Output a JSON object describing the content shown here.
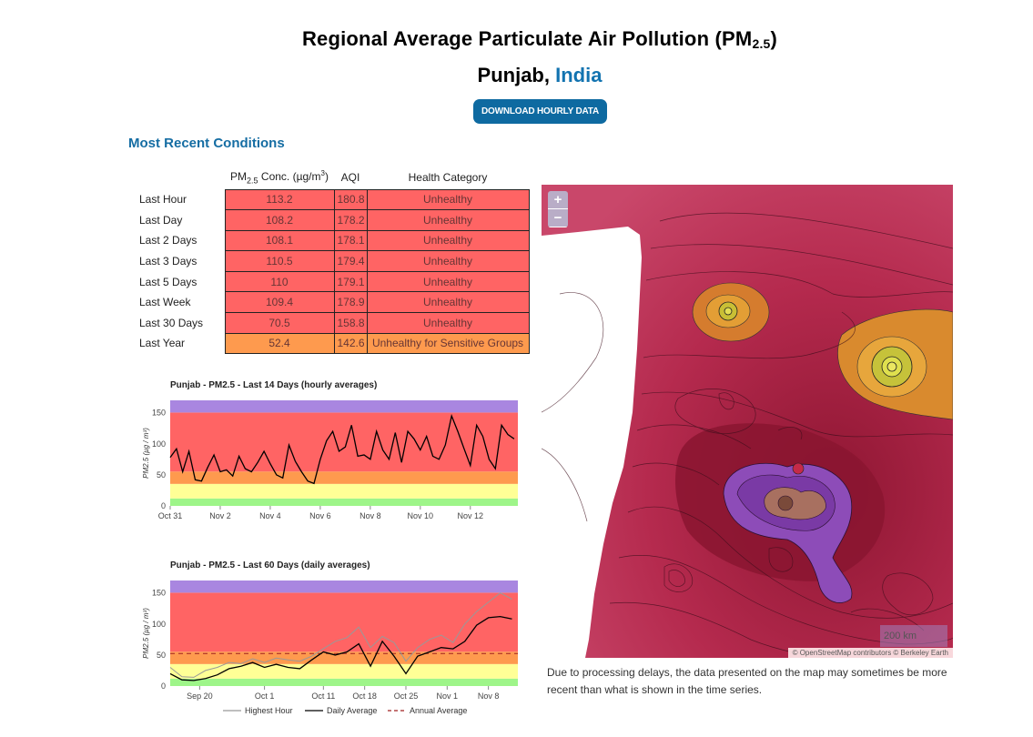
{
  "header": {
    "title_main": "Regional Average Particulate Air Pollution (PM",
    "title_sub": "2.5",
    "title_close": ")",
    "region": "Punjab,",
    "country": "India",
    "download_label": "DOWNLOAD HOURLY DATA"
  },
  "conditions": {
    "section_title": "Most Recent Conditions",
    "col_pm_main": "PM",
    "col_pm_sub": "2.5",
    "col_pm_unit": " Conc. (µg/m",
    "col_pm_sup": "3",
    "col_pm_close": ")",
    "col_aqi": "AQI",
    "col_health": "Health Category",
    "rows": [
      {
        "label": "Last Hour",
        "pm": "113.2",
        "aqi": "180.8",
        "category": "Unhealthy"
      },
      {
        "label": "Last Day",
        "pm": "108.2",
        "aqi": "178.2",
        "category": "Unhealthy"
      },
      {
        "label": "Last 2 Days",
        "pm": "108.1",
        "aqi": "178.1",
        "category": "Unhealthy"
      },
      {
        "label": "Last 3 Days",
        "pm": "110.5",
        "aqi": "179.4",
        "category": "Unhealthy"
      },
      {
        "label": "Last 5 Days",
        "pm": "110",
        "aqi": "179.1",
        "category": "Unhealthy"
      },
      {
        "label": "Last Week",
        "pm": "109.4",
        "aqi": "178.9",
        "category": "Unhealthy"
      },
      {
        "label": "Last 30 Days",
        "pm": "70.5",
        "aqi": "158.8",
        "category": "Unhealthy"
      },
      {
        "label": "Last Year",
        "pm": "52.4",
        "aqi": "142.6",
        "category": "Unhealthy for Sensitive Groups"
      }
    ],
    "colors": {
      "unhealthy": "#ff6464",
      "sensitive": "#fe9a4e"
    }
  },
  "chart_data": [
    {
      "type": "line",
      "title": "Punjab - PM2.5 - Last 14 Days (hourly averages)",
      "ylabel": "PM2.5 (µg / m³)",
      "xlabel": "",
      "ylim": [
        0,
        170
      ],
      "yticks": [
        0,
        50,
        100,
        150
      ],
      "x_tick_labels": [
        "Oct 31",
        "Nov 2",
        "Nov 4",
        "Nov 6",
        "Nov 8",
        "Nov 10",
        "Nov 12"
      ],
      "x_tick_days": [
        0,
        2,
        4,
        6,
        8,
        10,
        12
      ],
      "xlim_days": [
        0,
        13.9
      ],
      "bands": [
        {
          "from": 0,
          "to": 12,
          "color": "#9ef589"
        },
        {
          "from": 12,
          "to": 35.4,
          "color": "#ffff96"
        },
        {
          "from": 35.4,
          "to": 55.4,
          "color": "#fe9a4e"
        },
        {
          "from": 55.4,
          "to": 150.4,
          "color": "#ff6464"
        },
        {
          "from": 150.4,
          "to": 170,
          "color": "#a986e0"
        }
      ],
      "series": [
        {
          "name": "Hourly Average",
          "color": "#000000",
          "x": [
            0,
            0.25,
            0.5,
            0.75,
            1,
            1.25,
            1.5,
            1.75,
            2,
            2.25,
            2.5,
            2.75,
            3,
            3.25,
            3.5,
            3.75,
            4,
            4.25,
            4.5,
            4.75,
            5,
            5.25,
            5.5,
            5.75,
            6,
            6.25,
            6.5,
            6.75,
            7,
            7.25,
            7.5,
            7.75,
            8,
            8.25,
            8.5,
            8.75,
            9,
            9.25,
            9.5,
            9.75,
            10,
            10.25,
            10.5,
            10.75,
            11,
            11.25,
            11.5,
            11.75,
            12,
            12.25,
            12.5,
            12.75,
            13,
            13.25,
            13.5,
            13.75
          ],
          "values": [
            78,
            92,
            55,
            88,
            42,
            40,
            62,
            82,
            55,
            58,
            48,
            80,
            60,
            55,
            70,
            88,
            68,
            50,
            45,
            98,
            72,
            55,
            40,
            36,
            75,
            105,
            120,
            88,
            95,
            130,
            80,
            82,
            75,
            120,
            90,
            75,
            118,
            70,
            120,
            108,
            90,
            112,
            80,
            75,
            98,
            145,
            120,
            92,
            65,
            130,
            112,
            75,
            60,
            130,
            115,
            108
          ]
        }
      ]
    },
    {
      "type": "line",
      "title": "Punjab - PM2.5 - Last 60 Days (daily averages)",
      "ylabel": "PM2.5 (µg / m³)",
      "xlabel": "",
      "ylim": [
        0,
        170
      ],
      "yticks": [
        0,
        50,
        100,
        150
      ],
      "x_tick_labels": [
        "Sep 20",
        "Oct 1",
        "Oct 11",
        "Oct 18",
        "Oct 25",
        "Nov 1",
        "Nov 8"
      ],
      "x_tick_days": [
        5,
        16,
        26,
        33,
        40,
        47,
        54
      ],
      "xlim_days": [
        0,
        59
      ],
      "bands": [
        {
          "from": 0,
          "to": 12,
          "color": "#9ef589"
        },
        {
          "from": 12,
          "to": 35.4,
          "color": "#ffff96"
        },
        {
          "from": 35.4,
          "to": 55.4,
          "color": "#fe9a4e"
        },
        {
          "from": 55.4,
          "to": 150.4,
          "color": "#ff6464"
        },
        {
          "from": 150.4,
          "to": 170,
          "color": "#a986e0"
        }
      ],
      "annual_average": 52.4,
      "series": [
        {
          "name": "Highest Hour",
          "color": "#999999",
          "x": [
            0,
            2,
            4,
            6,
            8,
            10,
            12,
            14,
            16,
            18,
            20,
            22,
            24,
            26,
            28,
            30,
            32,
            34,
            36,
            38,
            40,
            42,
            44,
            46,
            48,
            50,
            52,
            54,
            56,
            58
          ],
          "values": [
            30,
            15,
            14,
            25,
            30,
            38,
            36,
            44,
            38,
            45,
            42,
            40,
            48,
            60,
            72,
            78,
            95,
            62,
            80,
            70,
            40,
            62,
            75,
            82,
            70,
            100,
            120,
            135,
            150,
            140
          ]
        },
        {
          "name": "Daily Average",
          "color": "#000000",
          "x": [
            0,
            2,
            4,
            6,
            8,
            10,
            12,
            14,
            16,
            18,
            20,
            22,
            24,
            26,
            28,
            30,
            32,
            34,
            36,
            38,
            40,
            42,
            44,
            46,
            48,
            50,
            52,
            54,
            56,
            58
          ],
          "values": [
            20,
            10,
            9,
            12,
            18,
            28,
            32,
            38,
            30,
            35,
            30,
            28,
            42,
            55,
            50,
            55,
            68,
            32,
            72,
            48,
            20,
            48,
            55,
            62,
            60,
            72,
            98,
            110,
            112,
            108
          ]
        }
      ],
      "legend": [
        "Highest Hour",
        "Daily Average",
        "Annual Average"
      ]
    }
  ],
  "map": {
    "zoom_in": "+",
    "zoom_out": "−",
    "scale": "200 km",
    "attribution": "© OpenStreetMap contributors © Berkeley Earth",
    "note": "Due to processing delays, the data presented on the map may sometimes be more recent than what is shown in the time series."
  }
}
